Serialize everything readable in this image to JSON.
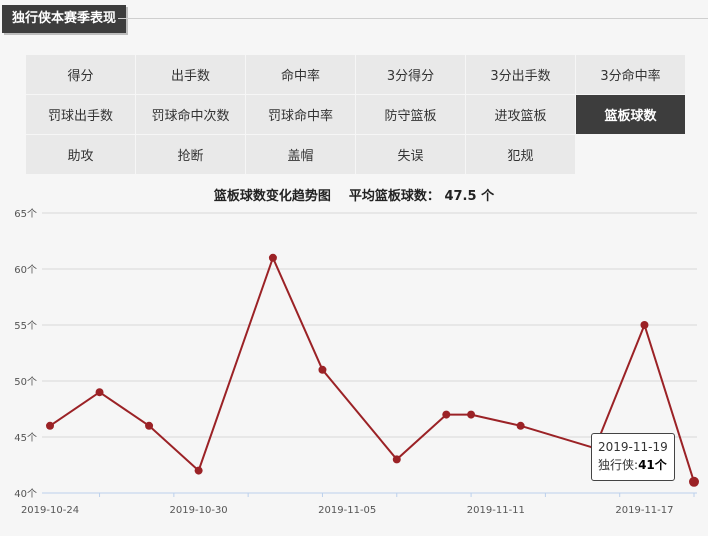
{
  "section": {
    "title": "独行侠本赛季表现"
  },
  "stat_tabs": [
    {
      "label": "得分"
    },
    {
      "label": "出手数"
    },
    {
      "label": "命中率"
    },
    {
      "label": "3分得分"
    },
    {
      "label": "3分出手数"
    },
    {
      "label": "3分命中率"
    },
    {
      "label": "罚球出手数"
    },
    {
      "label": "罚球命中次数"
    },
    {
      "label": "罚球命中率"
    },
    {
      "label": "防守篮板"
    },
    {
      "label": "进攻篮板"
    },
    {
      "label": "篮板球数"
    },
    {
      "label": "助攻"
    },
    {
      "label": "抢断"
    },
    {
      "label": "盖帽"
    },
    {
      "label": "失误"
    },
    {
      "label": "犯规"
    }
  ],
  "active_tab_index": 11,
  "chart_heading": {
    "title": "篮板球数变化趋势图",
    "avg_label": "平均篮板球数：",
    "avg_value": "47.5 个"
  },
  "tooltip": {
    "date": "2019-11-19",
    "team": "独行侠",
    "sep": ":",
    "value": "41个"
  },
  "colors": {
    "line": "#9b2226",
    "active_tab": "#3d3d3d",
    "grid": "#d8d8d8",
    "baseline": "#bcd0ec"
  },
  "chart_data": {
    "type": "line",
    "x": [
      "2019-10-24",
      "2019-10-26",
      "2019-10-28",
      "2019-10-30",
      "2019-11-02",
      "2019-11-04",
      "2019-11-07",
      "2019-11-09",
      "2019-11-10",
      "2019-11-12",
      "2019-11-15",
      "2019-11-17",
      "2019-11-19"
    ],
    "series": [
      {
        "values": [
          46,
          49,
          46,
          42,
          61,
          51,
          43,
          47,
          47,
          46,
          44,
          55,
          41
        ]
      }
    ],
    "y_ticks": [
      "40个",
      "45个",
      "50个",
      "55个",
      "60个",
      "65个"
    ],
    "x_ticks": [
      "2019-10-24",
      "2019-10-30",
      "2019-11-05",
      "2019-11-11",
      "2019-11-17"
    ],
    "ylim": [
      40,
      65
    ],
    "xlim": [
      "2019-10-24",
      "2019-11-19"
    ],
    "grid": true
  }
}
